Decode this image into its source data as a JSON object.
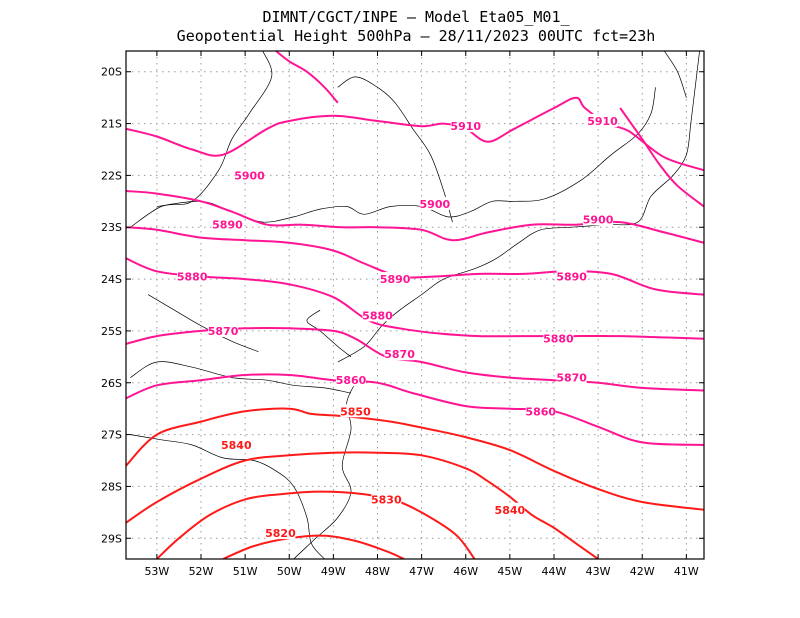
{
  "header": {
    "line1": "DIMNT/CGCT/INPE –  Model Eta05_M01_",
    "line2": "Geopotential Height 500hPa –  28/11/2023 00UTC fct=23h"
  },
  "colors": {
    "high": "#ff1493",
    "low": "#ff1a1a",
    "frame": "#000000",
    "grid": "#9a9a9a"
  },
  "chart_data": {
    "type": "contour-map",
    "field": "geopotential height",
    "xlim": [
      -53.7,
      -40.6
    ],
    "ylim": [
      -29.4,
      -19.6
    ],
    "x_ticks": [
      {
        "value": -53,
        "label": "53W"
      },
      {
        "value": -52,
        "label": "52W"
      },
      {
        "value": -51,
        "label": "51W"
      },
      {
        "value": -50,
        "label": "50W"
      },
      {
        "value": -49,
        "label": "49W"
      },
      {
        "value": -48,
        "label": "48W"
      },
      {
        "value": -47,
        "label": "47W"
      },
      {
        "value": -46,
        "label": "46W"
      },
      {
        "value": -45,
        "label": "45W"
      },
      {
        "value": -44,
        "label": "44W"
      },
      {
        "value": -43,
        "label": "43W"
      },
      {
        "value": -42,
        "label": "42W"
      },
      {
        "value": -41,
        "label": "41W"
      }
    ],
    "y_ticks": [
      {
        "value": -20,
        "label": "20S"
      },
      {
        "value": -21,
        "label": "21S"
      },
      {
        "value": -22,
        "label": "22S"
      },
      {
        "value": -23,
        "label": "23S"
      },
      {
        "value": -24,
        "label": "24S"
      },
      {
        "value": -25,
        "label": "25S"
      },
      {
        "value": -26,
        "label": "26S"
      },
      {
        "value": -27,
        "label": "27S"
      },
      {
        "value": -28,
        "label": "28S"
      },
      {
        "value": -29,
        "label": "29S"
      }
    ],
    "grid": true,
    "contours": [
      {
        "level": 5910,
        "label": "5910",
        "points": [
          [
            -53.7,
            -21.1
          ],
          [
            -53.0,
            -21.25
          ],
          [
            -52.2,
            -21.5
          ],
          [
            -51.5,
            -21.6
          ],
          [
            -50.5,
            -21.1
          ],
          [
            -50.0,
            -20.95
          ],
          [
            -49.0,
            -20.85
          ],
          [
            -48.0,
            -20.95
          ],
          [
            -47.0,
            -21.05
          ],
          [
            -46.5,
            -21.0
          ],
          [
            -46.0,
            -21.1
          ],
          [
            -45.5,
            -21.35
          ],
          [
            -44.9,
            -21.1
          ],
          [
            -44.0,
            -20.7
          ],
          [
            -43.5,
            -20.5
          ],
          [
            -43.3,
            -20.7
          ],
          [
            -42.8,
            -21.0
          ],
          [
            -42.3,
            -21.15
          ],
          [
            -41.5,
            -21.65
          ],
          [
            -40.6,
            -21.9
          ]
        ],
        "labels": [
          [
            -46.0,
            -21.05
          ],
          [
            -42.9,
            -20.95
          ]
        ]
      },
      {
        "level": 5900,
        "label": "5900",
        "points": [
          [
            -53.7,
            -22.3
          ],
          [
            -53.0,
            -22.35
          ],
          [
            -52.0,
            -22.5
          ],
          [
            -51.3,
            -22.7
          ],
          [
            -50.5,
            -22.95
          ],
          [
            -49.7,
            -22.95
          ],
          [
            -48.8,
            -23.0
          ],
          [
            -48.0,
            -23.0
          ],
          [
            -47.0,
            -23.05
          ],
          [
            -46.3,
            -23.25
          ],
          [
            -45.5,
            -23.1
          ],
          [
            -44.5,
            -22.95
          ],
          [
            -43.5,
            -22.95
          ],
          [
            -42.5,
            -22.9
          ],
          [
            -41.5,
            -23.1
          ],
          [
            -40.6,
            -23.3
          ]
        ],
        "labels": [
          [
            -50.9,
            -22.0
          ],
          [
            -46.7,
            -22.55
          ],
          [
            -43.0,
            -22.85
          ]
        ]
      },
      {
        "level": 5890,
        "label": "5890",
        "points": [
          [
            -53.7,
            -23.0
          ],
          [
            -53.0,
            -23.05
          ],
          [
            -52.0,
            -23.2
          ],
          [
            -51.0,
            -23.25
          ],
          [
            -50.0,
            -23.3
          ],
          [
            -49.0,
            -23.45
          ],
          [
            -48.3,
            -23.7
          ],
          [
            -47.5,
            -23.95
          ],
          [
            -46.7,
            -23.95
          ],
          [
            -45.7,
            -23.9
          ],
          [
            -44.7,
            -23.9
          ],
          [
            -43.7,
            -23.85
          ],
          [
            -42.7,
            -23.9
          ],
          [
            -41.7,
            -24.2
          ],
          [
            -40.6,
            -24.3
          ]
        ],
        "labels": [
          [
            -51.4,
            -22.95
          ],
          [
            -47.6,
            -24.0
          ],
          [
            -43.6,
            -23.95
          ]
        ]
      },
      {
        "level": 5880,
        "label": "5880",
        "points": [
          [
            -53.7,
            -23.6
          ],
          [
            -53.0,
            -23.85
          ],
          [
            -52.0,
            -23.95
          ],
          [
            -51.0,
            -24.0
          ],
          [
            -50.0,
            -24.1
          ],
          [
            -49.0,
            -24.35
          ],
          [
            -48.2,
            -24.8
          ],
          [
            -47.5,
            -24.95
          ],
          [
            -46.6,
            -25.05
          ],
          [
            -45.7,
            -25.1
          ],
          [
            -44.7,
            -25.1
          ],
          [
            -43.7,
            -25.1
          ],
          [
            -42.5,
            -25.1
          ],
          [
            -40.6,
            -25.15
          ]
        ],
        "labels": [
          [
            -52.2,
            -23.95
          ],
          [
            -48.0,
            -24.7
          ],
          [
            -43.9,
            -25.15
          ]
        ]
      },
      {
        "level": 5870,
        "label": "5870",
        "points": [
          [
            -53.7,
            -25.25
          ],
          [
            -53.0,
            -25.1
          ],
          [
            -52.0,
            -25.0
          ],
          [
            -51.0,
            -24.95
          ],
          [
            -50.0,
            -24.95
          ],
          [
            -49.0,
            -25.0
          ],
          [
            -48.5,
            -25.15
          ],
          [
            -47.8,
            -25.5
          ],
          [
            -47.0,
            -25.6
          ],
          [
            -46.0,
            -25.8
          ],
          [
            -45.0,
            -25.9
          ],
          [
            -44.0,
            -25.95
          ],
          [
            -43.0,
            -26.0
          ],
          [
            -42.0,
            -26.1
          ],
          [
            -40.6,
            -26.15
          ]
        ],
        "labels": [
          [
            -51.5,
            -25.0
          ],
          [
            -47.5,
            -25.45
          ],
          [
            -43.6,
            -25.9
          ]
        ]
      },
      {
        "level": 5860,
        "label": "5860",
        "points": [
          [
            -53.7,
            -26.3
          ],
          [
            -53.0,
            -26.05
          ],
          [
            -52.0,
            -25.95
          ],
          [
            -51.0,
            -25.85
          ],
          [
            -50.0,
            -25.85
          ],
          [
            -49.0,
            -25.95
          ],
          [
            -48.0,
            -26.0
          ],
          [
            -47.2,
            -26.2
          ],
          [
            -46.0,
            -26.45
          ],
          [
            -45.0,
            -26.5
          ],
          [
            -44.0,
            -26.55
          ],
          [
            -43.0,
            -26.85
          ],
          [
            -42.0,
            -27.15
          ],
          [
            -40.6,
            -27.2
          ]
        ],
        "labels": [
          [
            -48.6,
            -25.95
          ],
          [
            -44.3,
            -26.55
          ]
        ]
      },
      {
        "level": 5850,
        "label": "5850",
        "points": [
          [
            -53.7,
            -27.6
          ],
          [
            -53.0,
            -27.0
          ],
          [
            -52.0,
            -26.75
          ],
          [
            -51.0,
            -26.55
          ],
          [
            -50.0,
            -26.5
          ],
          [
            -49.5,
            -26.6
          ],
          [
            -48.7,
            -26.65
          ],
          [
            -47.7,
            -26.75
          ],
          [
            -46.8,
            -26.9
          ],
          [
            -46.0,
            -27.05
          ],
          [
            -45.0,
            -27.3
          ],
          [
            -44.0,
            -27.7
          ],
          [
            -43.0,
            -28.05
          ],
          [
            -42.0,
            -28.3
          ],
          [
            -40.6,
            -28.45
          ]
        ],
        "labels": [
          [
            -48.5,
            -26.55
          ]
        ]
      },
      {
        "level": 5840,
        "label": "5840",
        "points": [
          [
            -53.7,
            -28.7
          ],
          [
            -53.0,
            -28.3
          ],
          [
            -52.0,
            -27.85
          ],
          [
            -51.0,
            -27.5
          ],
          [
            -50.0,
            -27.4
          ],
          [
            -49.0,
            -27.35
          ],
          [
            -48.0,
            -27.35
          ],
          [
            -47.0,
            -27.4
          ],
          [
            -46.0,
            -27.65
          ],
          [
            -45.5,
            -27.9
          ],
          [
            -45.0,
            -28.2
          ],
          [
            -44.5,
            -28.55
          ],
          [
            -44.0,
            -28.8
          ],
          [
            -43.5,
            -29.1
          ],
          [
            -43.0,
            -29.4
          ]
        ],
        "labels": [
          [
            -51.2,
            -27.2
          ],
          [
            -45.0,
            -28.45
          ]
        ]
      },
      {
        "level": 5830,
        "label": "5830",
        "points": [
          [
            -53.0,
            -29.4
          ],
          [
            -52.5,
            -29.0
          ],
          [
            -51.8,
            -28.55
          ],
          [
            -51.0,
            -28.25
          ],
          [
            -50.2,
            -28.15
          ],
          [
            -49.3,
            -28.1
          ],
          [
            -48.3,
            -28.15
          ],
          [
            -47.5,
            -28.3
          ],
          [
            -46.8,
            -28.6
          ],
          [
            -46.2,
            -28.95
          ],
          [
            -45.8,
            -29.4
          ]
        ],
        "labels": [
          [
            -47.8,
            -28.25
          ]
        ]
      },
      {
        "level": 5820,
        "label": "5820",
        "points": [
          [
            -51.5,
            -29.4
          ],
          [
            -50.8,
            -29.15
          ],
          [
            -50.0,
            -29.0
          ],
          [
            -49.2,
            -28.95
          ],
          [
            -48.5,
            -29.05
          ],
          [
            -47.8,
            -29.25
          ],
          [
            -47.4,
            -29.4
          ]
        ],
        "labels": [
          [
            -50.2,
            -28.9
          ]
        ]
      },
      {
        "level": 5910,
        "label": "",
        "points": [
          [
            -50.3,
            -19.6
          ],
          [
            -50.0,
            -19.8
          ],
          [
            -49.6,
            -20.0
          ],
          [
            -49.2,
            -20.3
          ],
          [
            -48.9,
            -20.6
          ]
        ],
        "labels": []
      },
      {
        "level": 5910,
        "label": "",
        "points": [
          [
            -42.5,
            -20.7
          ],
          [
            -42.0,
            -21.3
          ],
          [
            -41.6,
            -21.8
          ],
          [
            -41.2,
            -22.2
          ],
          [
            -40.6,
            -22.6
          ]
        ],
        "labels": []
      }
    ],
    "borders": [
      [
        [
          -50.6,
          -19.6
        ],
        [
          -50.4,
          -20.1
        ],
        [
          -50.9,
          -20.8
        ],
        [
          -51.3,
          -21.3
        ],
        [
          -51.6,
          -21.9
        ],
        [
          -52.2,
          -22.5
        ],
        [
          -52.9,
          -22.6
        ],
        [
          -53.6,
          -23.0
        ]
      ],
      [
        [
          -53.0,
          -22.6
        ],
        [
          -52.0,
          -22.5
        ],
        [
          -51.3,
          -22.7
        ],
        [
          -50.6,
          -22.9
        ],
        [
          -49.9,
          -22.8
        ],
        [
          -49.3,
          -22.65
        ],
        [
          -48.7,
          -22.6
        ],
        [
          -48.3,
          -22.75
        ],
        [
          -47.7,
          -22.6
        ],
        [
          -47.0,
          -22.6
        ],
        [
          -46.4,
          -22.8
        ],
        [
          -45.9,
          -22.7
        ],
        [
          -45.4,
          -22.5
        ],
        [
          -44.9,
          -22.5
        ],
        [
          -44.2,
          -22.45
        ],
        [
          -43.4,
          -22.1
        ],
        [
          -42.7,
          -21.6
        ],
        [
          -42.1,
          -21.2
        ],
        [
          -41.8,
          -20.8
        ],
        [
          -41.7,
          -20.3
        ]
      ],
      [
        [
          -48.9,
          -20.3
        ],
        [
          -48.5,
          -20.1
        ],
        [
          -48.0,
          -20.3
        ],
        [
          -47.6,
          -20.6
        ],
        [
          -47.2,
          -21.1
        ],
        [
          -46.8,
          -21.6
        ],
        [
          -46.5,
          -22.3
        ],
        [
          -46.3,
          -22.9
        ]
      ],
      [
        [
          -53.6,
          -25.9
        ],
        [
          -53.0,
          -25.6
        ],
        [
          -52.2,
          -25.7
        ],
        [
          -51.3,
          -25.9
        ],
        [
          -50.5,
          -25.95
        ],
        [
          -49.9,
          -26.05
        ],
        [
          -49.2,
          -26.1
        ],
        [
          -48.6,
          -26.2
        ]
      ],
      [
        [
          -53.6,
          -27.0
        ],
        [
          -52.9,
          -27.1
        ],
        [
          -52.2,
          -27.2
        ],
        [
          -51.5,
          -27.45
        ],
        [
          -50.8,
          -27.5
        ],
        [
          -50.3,
          -27.7
        ],
        [
          -49.9,
          -28.0
        ],
        [
          -49.6,
          -28.6
        ],
        [
          -49.5,
          -29.1
        ],
        [
          -49.2,
          -29.4
        ]
      ],
      [
        [
          -48.5,
          -26.0
        ],
        [
          -48.7,
          -26.4
        ],
        [
          -48.6,
          -26.9
        ],
        [
          -48.8,
          -27.6
        ],
        [
          -48.6,
          -28.1
        ],
        [
          -48.9,
          -28.6
        ],
        [
          -49.4,
          -29.0
        ],
        [
          -49.9,
          -29.4
        ]
      ],
      [
        [
          -48.9,
          -25.6
        ],
        [
          -48.3,
          -25.3
        ],
        [
          -47.9,
          -24.9
        ],
        [
          -47.5,
          -24.6
        ],
        [
          -47.0,
          -24.3
        ],
        [
          -46.5,
          -24.0
        ],
        [
          -45.8,
          -23.8
        ],
        [
          -45.3,
          -23.6
        ],
        [
          -44.8,
          -23.3
        ],
        [
          -44.3,
          -23.05
        ],
        [
          -43.6,
          -23.0
        ],
        [
          -42.8,
          -22.95
        ],
        [
          -42.1,
          -22.9
        ],
        [
          -41.8,
          -22.4
        ],
        [
          -41.3,
          -22.0
        ],
        [
          -41.0,
          -21.6
        ],
        [
          -40.9,
          -21.0
        ],
        [
          -40.8,
          -20.3
        ],
        [
          -40.7,
          -19.6
        ]
      ],
      [
        [
          -49.3,
          -24.6
        ],
        [
          -49.6,
          -24.8
        ],
        [
          -49.3,
          -25.0
        ],
        [
          -48.9,
          -25.3
        ],
        [
          -48.6,
          -25.5
        ]
      ],
      [
        [
          -41.5,
          -19.6
        ],
        [
          -41.2,
          -20.0
        ],
        [
          -41.0,
          -20.5
        ]
      ],
      [
        [
          -53.2,
          -24.3
        ],
        [
          -52.6,
          -24.6
        ],
        [
          -52.0,
          -24.9
        ],
        [
          -51.3,
          -25.2
        ],
        [
          -50.7,
          -25.4
        ]
      ]
    ]
  }
}
